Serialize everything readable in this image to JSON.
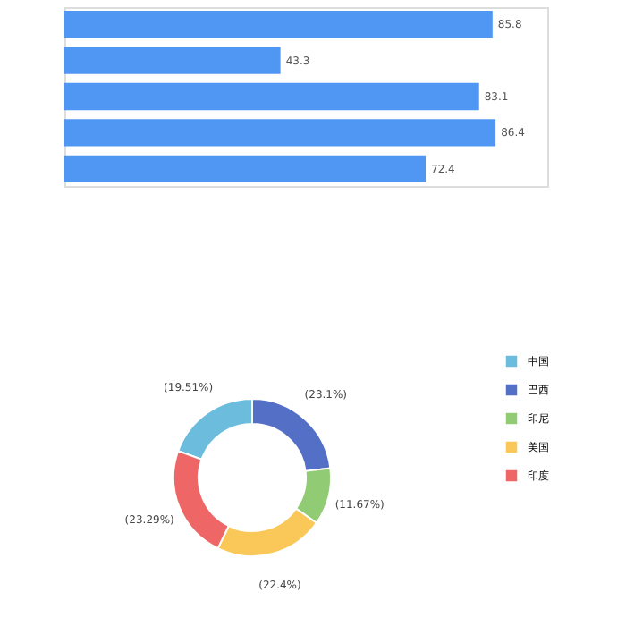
{
  "chart_data": [
    {
      "type": "bar",
      "orientation": "horizontal",
      "categories": [
        null,
        null,
        null,
        null,
        null
      ],
      "values": [
        85.8,
        43.3,
        83.1,
        86.4,
        72.4
      ],
      "color": "#4f97f2",
      "data_labels": true,
      "tick_labels": false
    },
    {
      "type": "donut",
      "categories": [
        "中国",
        "巴西",
        "印尼",
        "美国",
        "印度"
      ],
      "values": [
        19.51,
        23.1,
        11.67,
        22.4,
        23.29
      ],
      "colors": [
        "#6cbddd",
        "#5470c6",
        "#91cc75",
        "#fac858",
        "#ee6666"
      ],
      "value_labels": [
        "(19.51%)",
        "(23.1%)",
        "(11.67%)",
        "(22.4%)",
        "(23.29%)"
      ],
      "legend": "right"
    }
  ]
}
